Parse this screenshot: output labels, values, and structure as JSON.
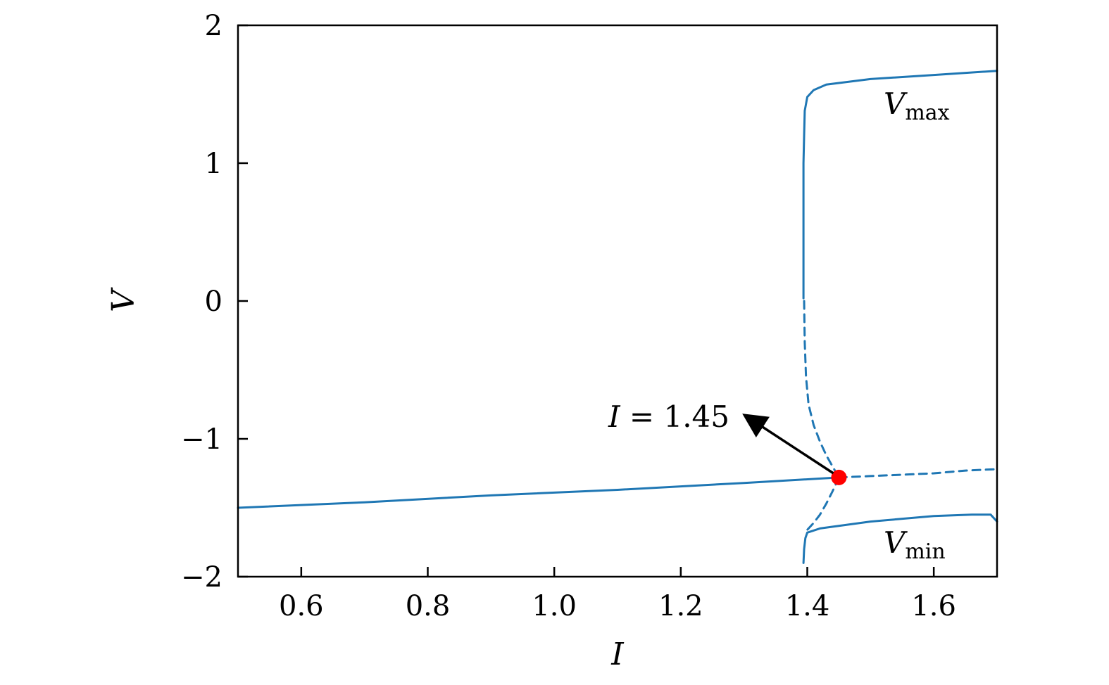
{
  "chart_data": {
    "type": "line",
    "title": "",
    "xlabel": "I",
    "ylabel": "V",
    "xlim": [
      0.5,
      1.7
    ],
    "ylim": [
      -2,
      2
    ],
    "xticks": [
      0.6,
      0.8,
      1.0,
      1.2,
      1.4,
      1.6
    ],
    "xtick_labels": [
      "0.6",
      "0.8",
      "1.0",
      "1.2",
      "1.4",
      "1.6"
    ],
    "yticks": [
      -2,
      -1,
      0,
      1,
      2
    ],
    "ytick_labels": [
      "−2",
      "−1",
      "0",
      "1",
      "2"
    ],
    "grid": false,
    "color": "#1f77b4",
    "marker_color": "#ff0000",
    "series": [
      {
        "style": "solid",
        "x": [
          0.5,
          0.7,
          0.9,
          1.1,
          1.3,
          1.45
        ],
        "y": [
          -1.5,
          -1.46,
          -1.41,
          -1.37,
          -1.32,
          -1.28
        ]
      },
      {
        "style": "dashed",
        "x": [
          1.45,
          1.5,
          1.55,
          1.6,
          1.65,
          1.7
        ],
        "y": [
          -1.28,
          -1.27,
          -1.26,
          -1.25,
          -1.23,
          -1.22
        ]
      },
      {
        "style": "dashed",
        "x": [
          1.395,
          1.396,
          1.398,
          1.402,
          1.41,
          1.42,
          1.43,
          1.44,
          1.45
        ],
        "y": [
          0.0,
          -0.3,
          -0.55,
          -0.75,
          -0.9,
          -1.02,
          -1.12,
          -1.2,
          -1.28
        ]
      },
      {
        "style": "dashed",
        "x": [
          1.45,
          1.44,
          1.43,
          1.42,
          1.41,
          1.4
        ],
        "y": [
          -1.28,
          -1.38,
          -1.47,
          -1.55,
          -1.61,
          -1.66
        ]
      },
      {
        "style": "solid",
        "x": [
          1.394,
          1.394,
          1.394,
          1.395,
          1.396,
          1.4,
          1.41,
          1.43,
          1.5,
          1.6,
          1.7
        ],
        "y": [
          0.02,
          0.5,
          1.0,
          1.2,
          1.38,
          1.48,
          1.53,
          1.57,
          1.61,
          1.64,
          1.67
        ]
      },
      {
        "style": "solid",
        "x": [
          1.394,
          1.395,
          1.397,
          1.4,
          1.42,
          1.5,
          1.6,
          1.66,
          1.69,
          1.7
        ],
        "y": [
          -1.9,
          -1.8,
          -1.72,
          -1.68,
          -1.65,
          -1.6,
          -1.56,
          -1.55,
          -1.55,
          -1.6
        ]
      }
    ],
    "point": {
      "x": 1.45,
      "y": -1.28
    },
    "annotations": [
      {
        "text_var": "I",
        "text_rest": " = 1.45",
        "arrow_to": {
          "x": 1.45,
          "y": -1.28
        }
      },
      {
        "var": "V",
        "sub": "max"
      },
      {
        "var": "V",
        "sub": "min"
      }
    ]
  }
}
